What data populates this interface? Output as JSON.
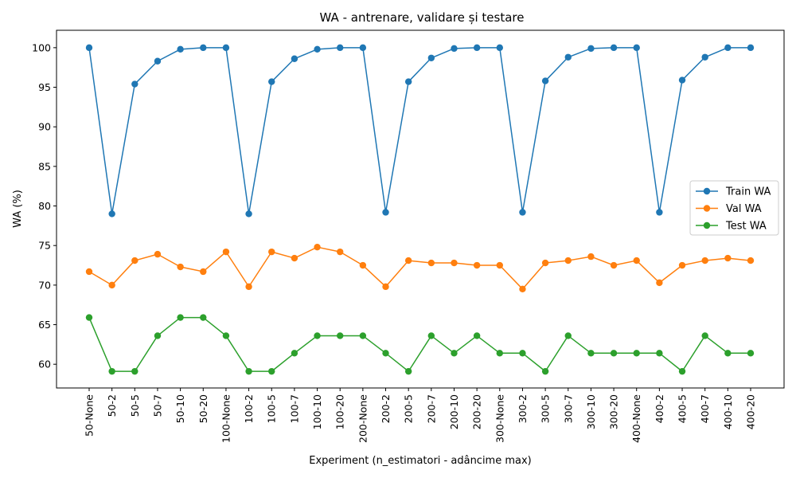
{
  "chart_data": {
    "type": "line",
    "title": "WA - antrenare, validare și testare",
    "xlabel": "Experiment (n_estimatori - adâncime max)",
    "ylabel": "WA (%)",
    "ylim": [
      57.0,
      102.2
    ],
    "yticks": [
      60,
      65,
      70,
      75,
      80,
      85,
      90,
      95,
      100
    ],
    "grid": false,
    "legend_position": "center-right",
    "categories": [
      "50-None",
      "50-2",
      "50-5",
      "50-7",
      "50-10",
      "50-20",
      "100-None",
      "100-2",
      "100-5",
      "100-7",
      "100-10",
      "100-20",
      "200-None",
      "200-2",
      "200-5",
      "200-7",
      "200-10",
      "200-20",
      "300-None",
      "300-2",
      "300-5",
      "300-7",
      "300-10",
      "300-20",
      "400-None",
      "400-2",
      "400-5",
      "400-7",
      "400-10",
      "400-20"
    ],
    "series": [
      {
        "name": "Train WA",
        "color": "#1f77b4",
        "values": [
          100.0,
          79.0,
          95.4,
          98.3,
          99.8,
          100.0,
          100.0,
          79.0,
          95.7,
          98.6,
          99.8,
          100.0,
          100.0,
          79.2,
          95.7,
          98.7,
          99.9,
          100.0,
          100.0,
          79.2,
          95.8,
          98.8,
          99.9,
          100.0,
          100.0,
          79.2,
          95.9,
          98.8,
          100.0,
          100.0
        ]
      },
      {
        "name": "Val WA",
        "color": "#ff7f0e",
        "values": [
          71.7,
          70.0,
          73.1,
          73.9,
          72.3,
          71.7,
          74.2,
          69.8,
          74.2,
          73.4,
          74.8,
          74.2,
          72.5,
          69.8,
          73.1,
          72.8,
          72.8,
          72.5,
          72.5,
          69.5,
          72.8,
          73.1,
          73.6,
          72.5,
          73.1,
          70.3,
          72.5,
          73.1,
          73.4,
          73.1
        ]
      },
      {
        "name": "Test WA",
        "color": "#2ca02c",
        "values": [
          65.9,
          59.1,
          59.1,
          63.6,
          65.9,
          65.9,
          63.6,
          59.1,
          59.1,
          61.4,
          63.6,
          63.6,
          63.6,
          61.4,
          59.1,
          63.6,
          61.4,
          63.6,
          61.4,
          61.4,
          59.1,
          63.6,
          61.4,
          61.4,
          61.4,
          61.4,
          59.1,
          63.6,
          61.4,
          61.4
        ]
      }
    ]
  }
}
